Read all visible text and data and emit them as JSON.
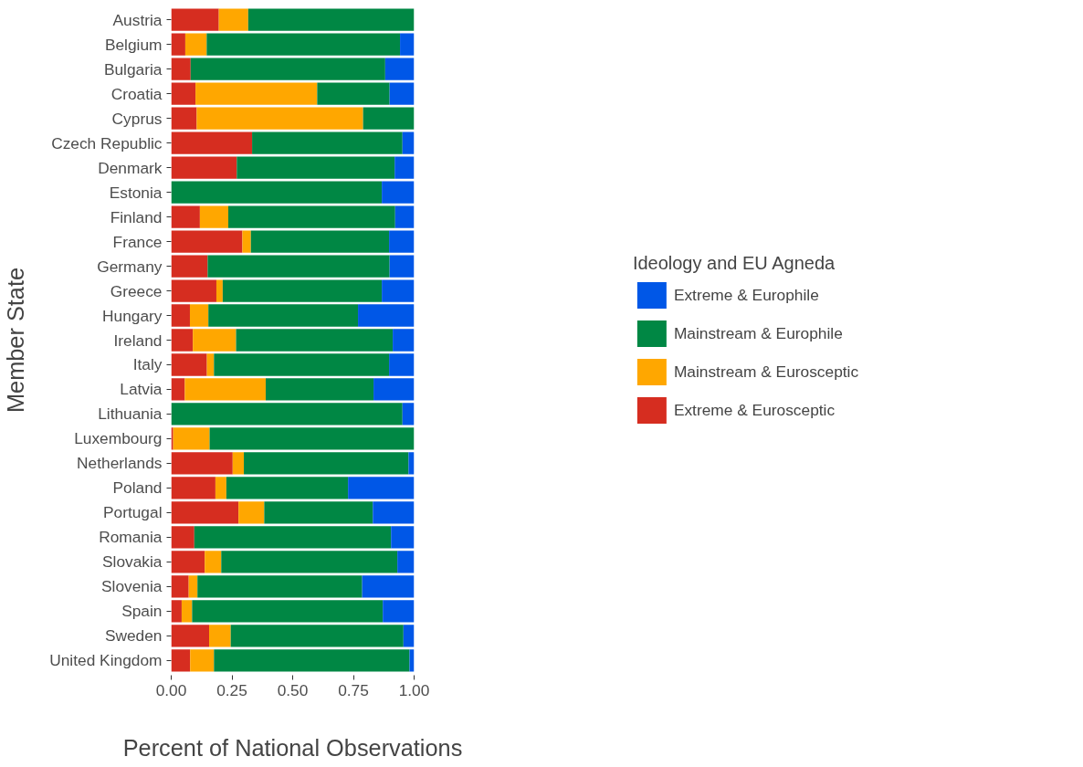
{
  "chart_data": {
    "type": "bar",
    "orientation": "horizontal",
    "stacked": true,
    "xlabel": "Percent of National Observations",
    "ylabel": "Member State",
    "legend_title": "Ideology and EU Agneda",
    "categories": [
      "Austria",
      "Belgium",
      "Bulgaria",
      "Croatia",
      "Cyprus",
      "Czech Republic",
      "Denmark",
      "Estonia",
      "Finland",
      "France",
      "Germany",
      "Greece",
      "Hungary",
      "Ireland",
      "Italy",
      "Latvia",
      "Lithuania",
      "Luxembourg",
      "Netherlands",
      "Poland",
      "Portugal",
      "Romania",
      "Slovakia",
      "Slovenia",
      "Spain",
      "Sweden",
      "United Kingdom"
    ],
    "series": [
      {
        "name": "Extreme & Eurosceptic",
        "color": "#d62d20",
        "values": [
          0.196,
          0.058,
          0.08,
          0.1,
          0.105,
          0.333,
          0.27,
          0,
          0.118,
          0.293,
          0.15,
          0.186,
          0.077,
          0.089,
          0.147,
          0.056,
          0,
          0.008,
          0.253,
          0.182,
          0.277,
          0.095,
          0.138,
          0.072,
          0.043,
          0.156,
          0.078
        ]
      },
      {
        "name": "Mainstream & Eurosceptic",
        "color": "#ffa700",
        "values": [
          0.121,
          0.088,
          0,
          0.501,
          0.685,
          0,
          0,
          0,
          0.117,
          0.035,
          0,
          0.026,
          0.076,
          0.178,
          0.029,
          0.333,
          0,
          0.15,
          0.046,
          0.045,
          0.106,
          0,
          0.068,
          0.036,
          0.043,
          0.089,
          0.098
        ]
      },
      {
        "name": "Mainstream & Europhile",
        "color": "#008744",
        "values": [
          0.683,
          0.796,
          0.801,
          0.298,
          0.21,
          0.619,
          0.65,
          0.867,
          0.687,
          0.569,
          0.749,
          0.655,
          0.616,
          0.645,
          0.721,
          0.444,
          0.952,
          0.842,
          0.678,
          0.501,
          0.447,
          0.81,
          0.725,
          0.678,
          0.785,
          0.711,
          0.805
        ]
      },
      {
        "name": "Extreme & Europhile",
        "color": "#0057e7",
        "values": [
          0,
          0.058,
          0.119,
          0.101,
          0,
          0.048,
          0.08,
          0.133,
          0.078,
          0.103,
          0.101,
          0.133,
          0.231,
          0.088,
          0.103,
          0.167,
          0.048,
          0,
          0.023,
          0.272,
          0.17,
          0.095,
          0.069,
          0.214,
          0.129,
          0.044,
          0.019
        ]
      }
    ],
    "xlim": [
      0,
      1
    ],
    "xticks": [
      {
        "value": 0,
        "label": "0.00"
      },
      {
        "value": 0.25,
        "label": "0.25"
      },
      {
        "value": 0.5,
        "label": "0.50"
      },
      {
        "value": 0.75,
        "label": "0.75"
      },
      {
        "value": 1,
        "label": "1.00"
      }
    ],
    "grid": false,
    "legend": "right"
  }
}
